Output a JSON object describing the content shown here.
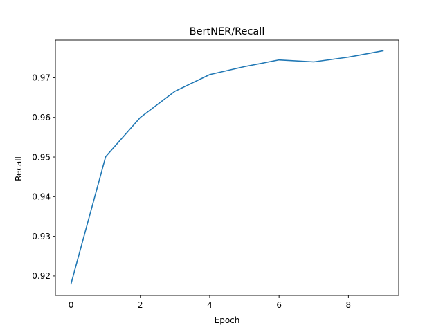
{
  "chart_data": {
    "type": "line",
    "title": "BertNER/Recall",
    "xlabel": "Epoch",
    "ylabel": "Recall",
    "xlim": [
      -0.45,
      9.45
    ],
    "ylim": [
      0.9151,
      0.9795
    ],
    "x_ticks": [
      0,
      2,
      4,
      6,
      8
    ],
    "x_tick_labels": [
      "0",
      "2",
      "4",
      "6",
      "8"
    ],
    "y_ticks": [
      0.92,
      0.93,
      0.94,
      0.95,
      0.96,
      0.97
    ],
    "y_tick_labels": [
      "0.92",
      "0.93",
      "0.94",
      "0.95",
      "0.96",
      "0.97"
    ],
    "grid": false,
    "series": [
      {
        "color": "#1f77b4",
        "x": [
          0,
          1,
          2,
          3,
          4,
          5,
          6,
          7,
          8,
          9
        ],
        "values": [
          0.918,
          0.9501,
          0.96,
          0.9666,
          0.9708,
          0.9728,
          0.9745,
          0.974,
          0.9752,
          0.9768
        ]
      }
    ]
  }
}
